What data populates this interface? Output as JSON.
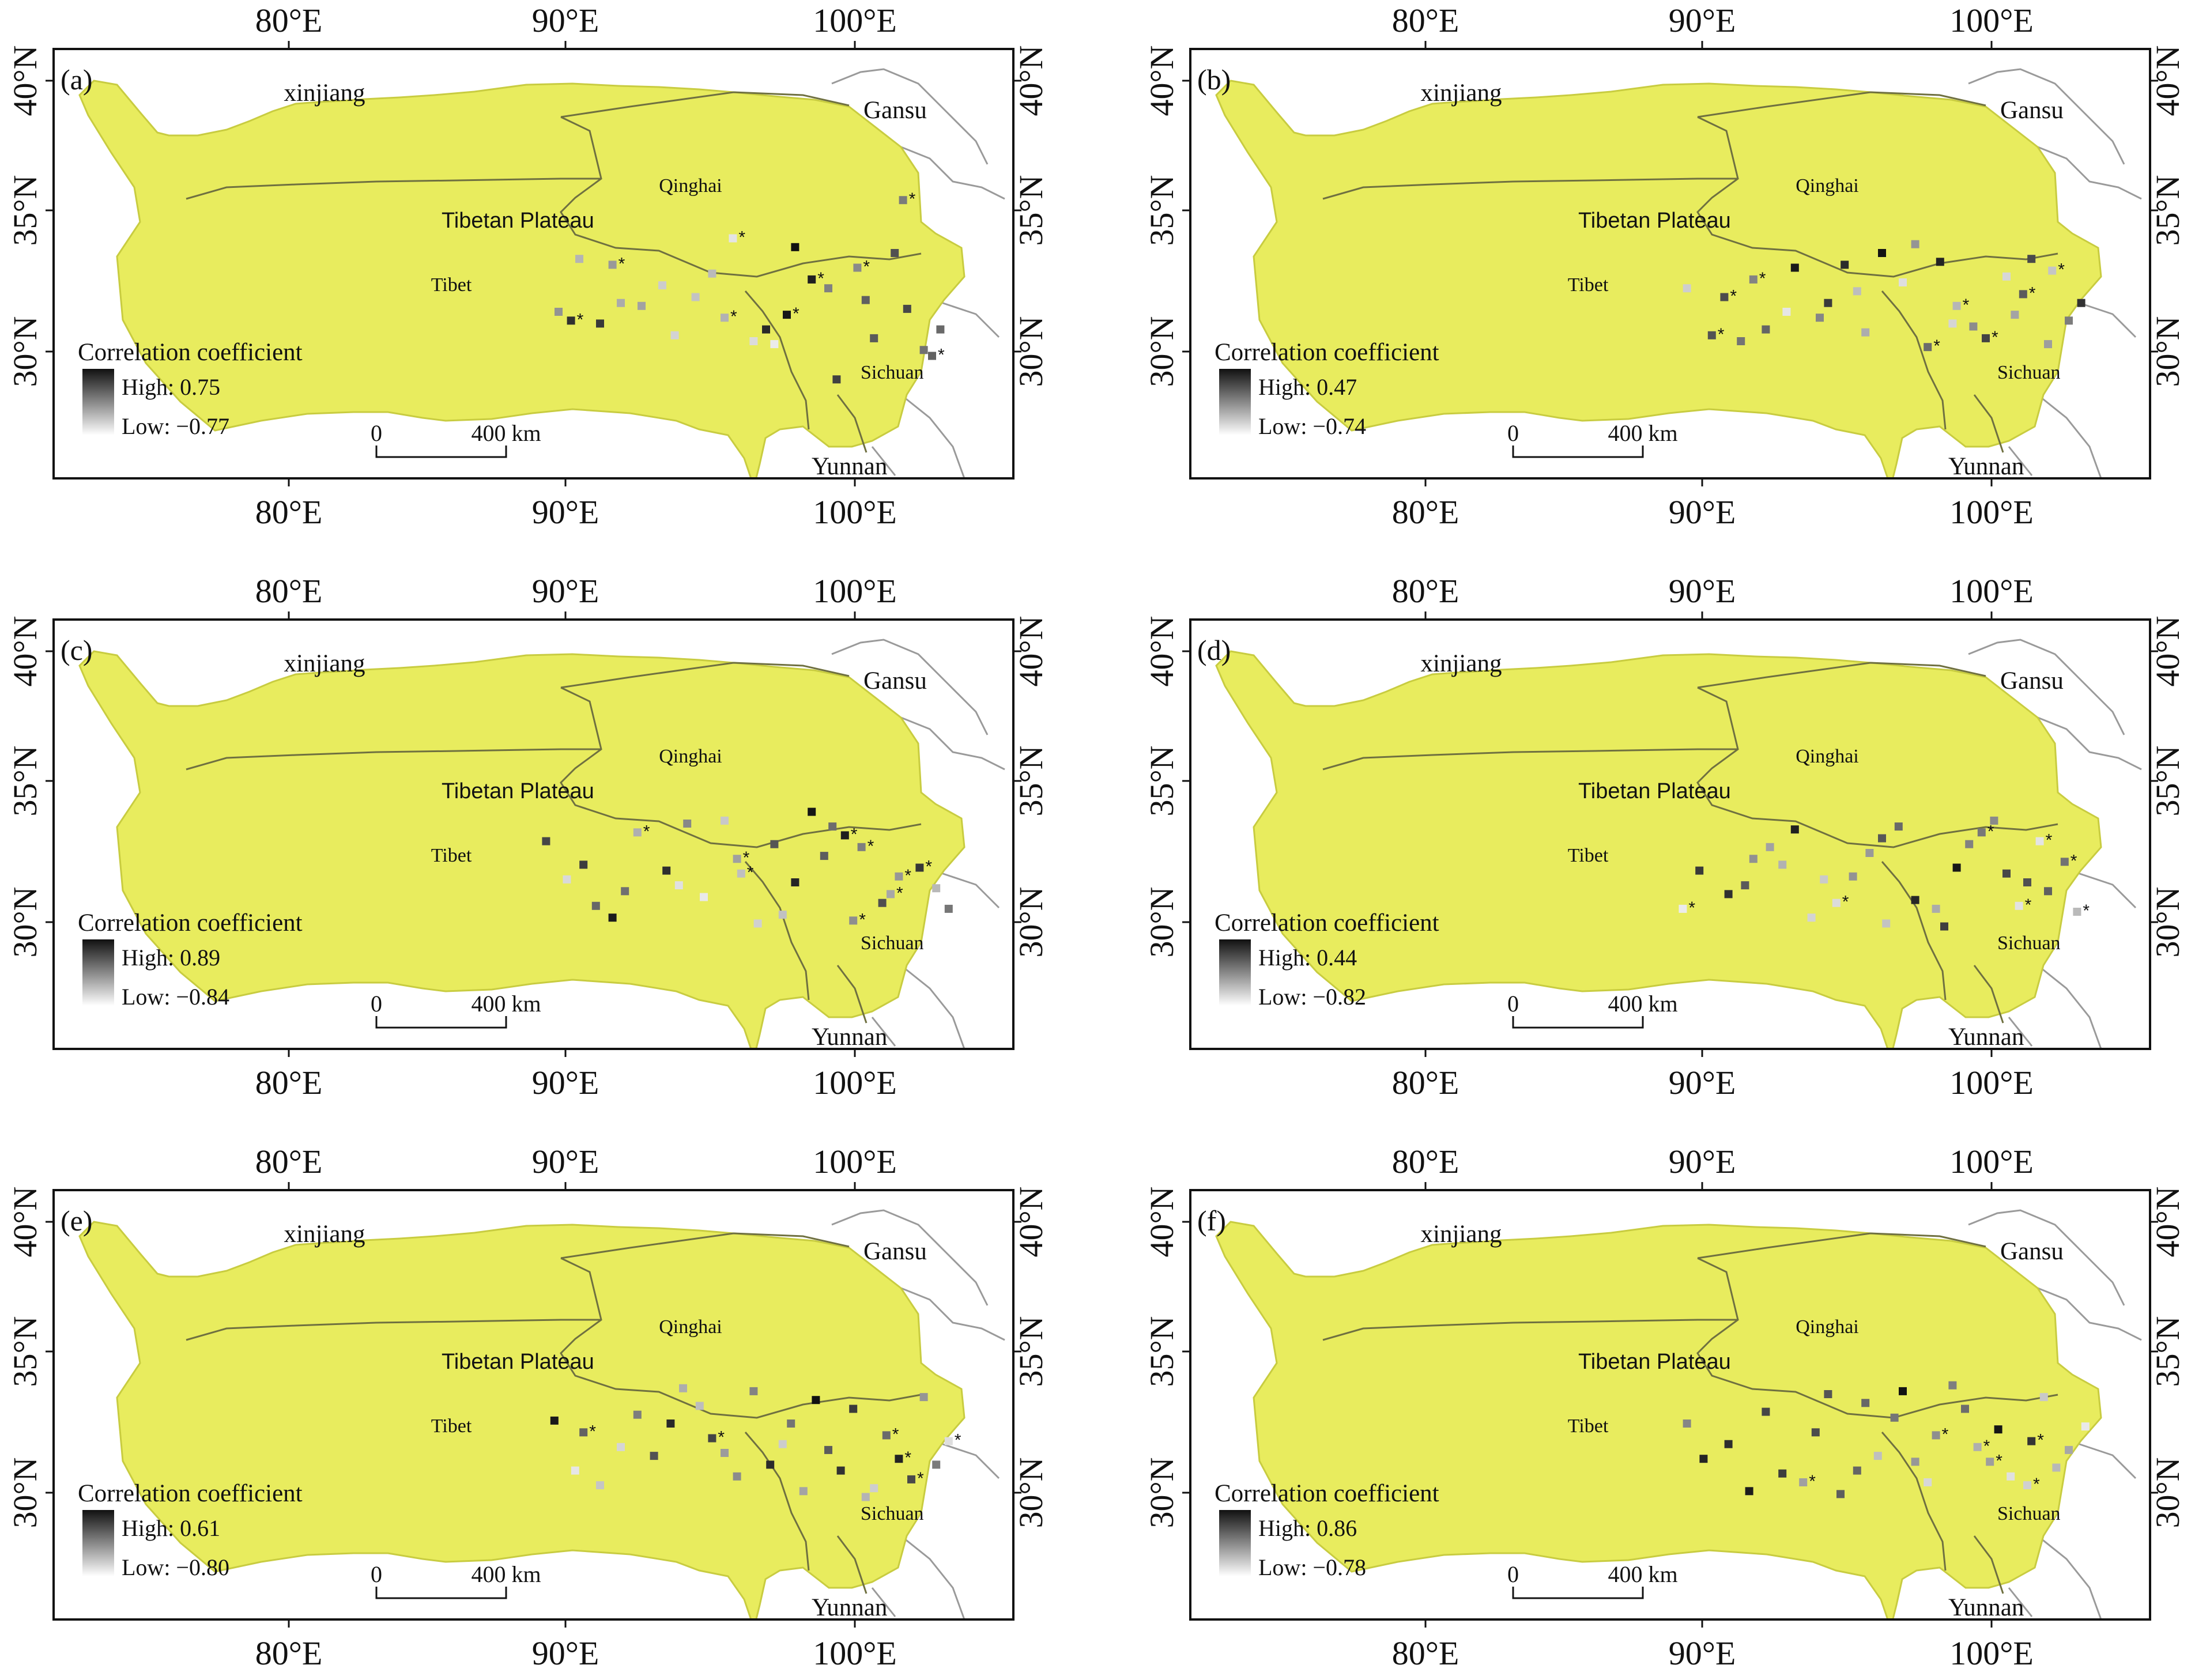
{
  "colors": {
    "plateau_fill": "#e8ec5e",
    "plateau_stroke": "#c8cc40",
    "boundary": "#6f7040",
    "frame": "#111111",
    "legend_high": "#111111",
    "legend_low": "#ffffff",
    "outside_border": "#9a9a9a"
  },
  "axes": {
    "top_ticks": [
      "80°E",
      "90°E",
      "100°E"
    ],
    "bottom_ticks": [
      "80°E",
      "90°E",
      "100°E"
    ],
    "left_ticks": [
      "40°N",
      "35°N",
      "30°N"
    ],
    "right_ticks": [
      "40°N",
      "35°N",
      "30°N"
    ]
  },
  "map_labels": {
    "xinjiang": "xinjiang",
    "gansu": "Gansu",
    "qinghai": "Qinghai",
    "plateau": "Tibetan Plateau",
    "tibet": "Tibet",
    "sichuan": "Sichuan",
    "yunnan": "Yunnan"
  },
  "legend": {
    "title": "Correlation coefficient"
  },
  "scale_bar": {
    "zero": "0",
    "distance": "400 km"
  },
  "significance_marker": "*",
  "panels": [
    {
      "label": "(a)",
      "high": "High: 0.75",
      "low": "Low: −0.77",
      "stations": [
        [
          0.62,
          0.38
        ],
        [
          0.95,
          0.75
        ],
        [
          0.1,
          0.42
        ],
        [
          0.55,
          0.66
        ],
        [
          0.88,
          0.22
        ],
        [
          0.3,
          0.51
        ],
        [
          0.72,
          0.83
        ],
        [
          0.05,
          0.6
        ],
        [
          0.47,
          0.35
        ],
        [
          0.81,
          0.69
        ],
        [
          0.2,
          0.57
        ],
        [
          0.66,
          0.49
        ],
        [
          0.93,
          0.73
        ],
        [
          0.38,
          0.55
        ],
        [
          0.15,
          0.64
        ],
        [
          0.77,
          0.45
        ],
        [
          0.52,
          0.7
        ],
        [
          0.86,
          0.4
        ],
        [
          0.25,
          0.58
        ],
        [
          0.6,
          0.61
        ],
        [
          0.97,
          0.66
        ],
        [
          0.42,
          0.47
        ],
        [
          0.08,
          0.63
        ],
        [
          0.7,
          0.52
        ],
        [
          0.33,
          0.68
        ],
        [
          0.89,
          0.59
        ],
        [
          0.18,
          0.44
        ],
        [
          0.57,
          0.71
        ],
        [
          0.79,
          0.56
        ],
        [
          0.45,
          0.62
        ]
      ],
      "stars": [
        1,
        4,
        8,
        11,
        15,
        19,
        22,
        26,
        29
      ]
    },
    {
      "label": "(b)",
      "high": "High: 0.47",
      "low": "Low: −0.74",
      "stations": [
        [
          0.35,
          0.62
        ],
        [
          0.8,
          0.48
        ],
        [
          0.12,
          0.55
        ],
        [
          0.9,
          0.71
        ],
        [
          0.5,
          0.4
        ],
        [
          0.22,
          0.66
        ],
        [
          0.68,
          0.58
        ],
        [
          0.41,
          0.44
        ],
        [
          0.95,
          0.63
        ],
        [
          0.03,
          0.52
        ],
        [
          0.75,
          0.69
        ],
        [
          0.58,
          0.37
        ],
        [
          0.27,
          0.6
        ],
        [
          0.84,
          0.54
        ],
        [
          0.46,
          0.67
        ],
        [
          0.64,
          0.43
        ],
        [
          0.16,
          0.7
        ],
        [
          0.91,
          0.46
        ],
        [
          0.37,
          0.57
        ],
        [
          0.72,
          0.65
        ],
        [
          0.55,
          0.5
        ],
        [
          0.09,
          0.68
        ],
        [
          0.82,
          0.61
        ],
        [
          0.29,
          0.45
        ],
        [
          0.61,
          0.72
        ],
        [
          0.44,
          0.53
        ],
        [
          0.98,
          0.57
        ],
        [
          0.19,
          0.49
        ],
        [
          0.67,
          0.64
        ],
        [
          0.86,
          0.42
        ]
      ],
      "stars": [
        2,
        6,
        10,
        13,
        17,
        21,
        24,
        27
      ]
    },
    {
      "label": "(c)",
      "high": "High: 0.89",
      "low": "Low: −0.84",
      "stations": [
        [
          0.74,
          0.44
        ],
        [
          0.21,
          0.63
        ],
        [
          0.59,
          0.71
        ],
        [
          0.92,
          0.55
        ],
        [
          0.36,
          0.4
        ],
        [
          0.07,
          0.59
        ],
        [
          0.83,
          0.67
        ],
        [
          0.48,
          0.52
        ],
        [
          0.66,
          0.36
        ],
        [
          0.14,
          0.68
        ],
        [
          0.96,
          0.62
        ],
        [
          0.31,
          0.56
        ],
        [
          0.78,
          0.48
        ],
        [
          0.53,
          0.74
        ],
        [
          0.02,
          0.46
        ],
        [
          0.87,
          0.58
        ],
        [
          0.4,
          0.65
        ],
        [
          0.69,
          0.51
        ],
        [
          0.24,
          0.43
        ],
        [
          0.62,
          0.6
        ],
        [
          0.99,
          0.69
        ],
        [
          0.45,
          0.39
        ],
        [
          0.11,
          0.54
        ],
        [
          0.76,
          0.73
        ],
        [
          0.34,
          0.61
        ],
        [
          0.57,
          0.47
        ],
        [
          0.85,
          0.64
        ],
        [
          0.18,
          0.72
        ],
        [
          0.71,
          0.41
        ],
        [
          0.49,
          0.57
        ]
      ],
      "stars": [
        0,
        3,
        7,
        12,
        15,
        18,
        23,
        26,
        29
      ]
    },
    {
      "label": "(d)",
      "high": "High: 0.44",
      "low": "Low: −0.82",
      "stations": [
        [
          0.43,
          0.58
        ],
        [
          0.88,
          0.46
        ],
        [
          0.17,
          0.61
        ],
        [
          0.63,
          0.69
        ],
        [
          0.29,
          0.42
        ],
        [
          0.94,
          0.53
        ],
        [
          0.51,
          0.74
        ],
        [
          0.06,
          0.56
        ],
        [
          0.77,
          0.39
        ],
        [
          0.39,
          0.67
        ],
        [
          0.85,
          0.6
        ],
        [
          0.23,
          0.48
        ],
        [
          0.68,
          0.55
        ],
        [
          0.54,
          0.41
        ],
        [
          0.97,
          0.7
        ],
        [
          0.13,
          0.64
        ],
        [
          0.71,
          0.47
        ],
        [
          0.33,
          0.72
        ],
        [
          0.8,
          0.57
        ],
        [
          0.47,
          0.5
        ],
        [
          0.02,
          0.69
        ],
        [
          0.9,
          0.63
        ],
        [
          0.26,
          0.54
        ],
        [
          0.58,
          0.66
        ],
        [
          0.74,
          0.43
        ],
        [
          0.36,
          0.59
        ],
        [
          0.65,
          0.75
        ],
        [
          0.19,
          0.52
        ],
        [
          0.83,
          0.68
        ],
        [
          0.5,
          0.45
        ]
      ],
      "stars": [
        1,
        5,
        9,
        14,
        20,
        24,
        28
      ]
    },
    {
      "label": "(e)",
      "high": "High: 0.61",
      "low": "Low: −0.80",
      "stations": [
        [
          0.56,
          0.64
        ],
        [
          0.24,
          0.47
        ],
        [
          0.81,
          0.72
        ],
        [
          0.42,
          0.55
        ],
        [
          0.93,
          0.41
        ],
        [
          0.09,
          0.66
        ],
        [
          0.7,
          0.59
        ],
        [
          0.35,
          0.38
        ],
        [
          0.87,
          0.62
        ],
        [
          0.61,
          0.5
        ],
        [
          0.15,
          0.71
        ],
        [
          0.76,
          0.45
        ],
        [
          0.48,
          0.68
        ],
        [
          0.99,
          0.56
        ],
        [
          0.28,
          0.61
        ],
        [
          0.64,
          0.73
        ],
        [
          0.04,
          0.49
        ],
        [
          0.84,
          0.54
        ],
        [
          0.39,
          0.44
        ],
        [
          0.73,
          0.66
        ],
        [
          0.52,
          0.39
        ],
        [
          0.2,
          0.58
        ],
        [
          0.9,
          0.69
        ],
        [
          0.45,
          0.6
        ],
        [
          0.67,
          0.42
        ],
        [
          0.11,
          0.53
        ],
        [
          0.79,
          0.75
        ],
        [
          0.32,
          0.5
        ],
        [
          0.96,
          0.64
        ],
        [
          0.59,
          0.57
        ]
      ],
      "stars": [
        3,
        8,
        13,
        17,
        22,
        25
      ]
    },
    {
      "label": "(f)",
      "high": "High: 0.86",
      "low": "Low: −0.78",
      "stations": [
        [
          0.31,
          0.7
        ],
        [
          0.78,
          0.52
        ],
        [
          0.46,
          0.43
        ],
        [
          0.92,
          0.65
        ],
        [
          0.13,
          0.57
        ],
        [
          0.67,
          0.37
        ],
        [
          0.85,
          0.71
        ],
        [
          0.22,
          0.46
        ],
        [
          0.58,
          0.63
        ],
        [
          0.99,
          0.51
        ],
        [
          0.4,
          0.74
        ],
        [
          0.73,
          0.58
        ],
        [
          0.07,
          0.62
        ],
        [
          0.53,
          0.48
        ],
        [
          0.89,
          0.41
        ],
        [
          0.26,
          0.67
        ],
        [
          0.63,
          0.54
        ],
        [
          0.81,
          0.68
        ],
        [
          0.37,
          0.4
        ],
        [
          0.95,
          0.59
        ],
        [
          0.18,
          0.73
        ],
        [
          0.7,
          0.45
        ],
        [
          0.49,
          0.61
        ],
        [
          0.86,
          0.56
        ],
        [
          0.03,
          0.5
        ],
        [
          0.61,
          0.7
        ],
        [
          0.34,
          0.53
        ],
        [
          0.76,
          0.63
        ],
        [
          0.55,
          0.39
        ],
        [
          0.44,
          0.66
        ]
      ],
      "stars": [
        0,
        6,
        11,
        16,
        23,
        27
      ]
    }
  ]
}
